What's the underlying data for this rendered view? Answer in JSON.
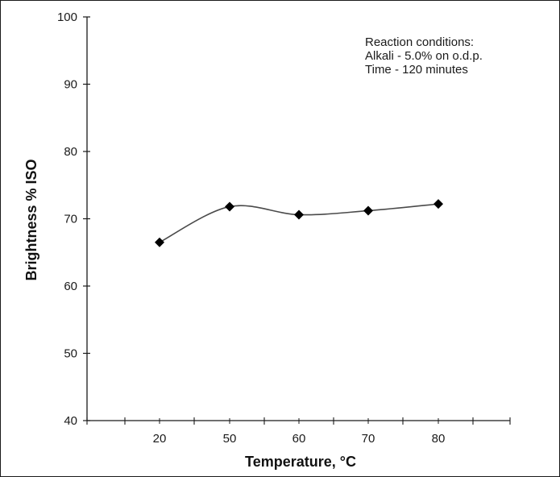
{
  "chart_data": {
    "type": "line",
    "categories": [
      "20",
      "50",
      "60",
      "70",
      "80"
    ],
    "series": [
      {
        "values": [
          66.5,
          71.8,
          70.6,
          71.2,
          72.2
        ]
      }
    ],
    "xlabel": "Temperature, °C",
    "ylabel": "Brightness % ISO",
    "ylim": [
      40,
      100
    ],
    "yticks": [
      40,
      50,
      60,
      70,
      80,
      90,
      100
    ],
    "grid": false,
    "smoothed": true,
    "marker": "diamond",
    "line_color": "#4a4a4a",
    "marker_color": "#000000",
    "annotation": [
      "Reaction conditions:",
      "Alkali - 5.0% on o.d.p.",
      "Time - 120 minutes"
    ]
  }
}
